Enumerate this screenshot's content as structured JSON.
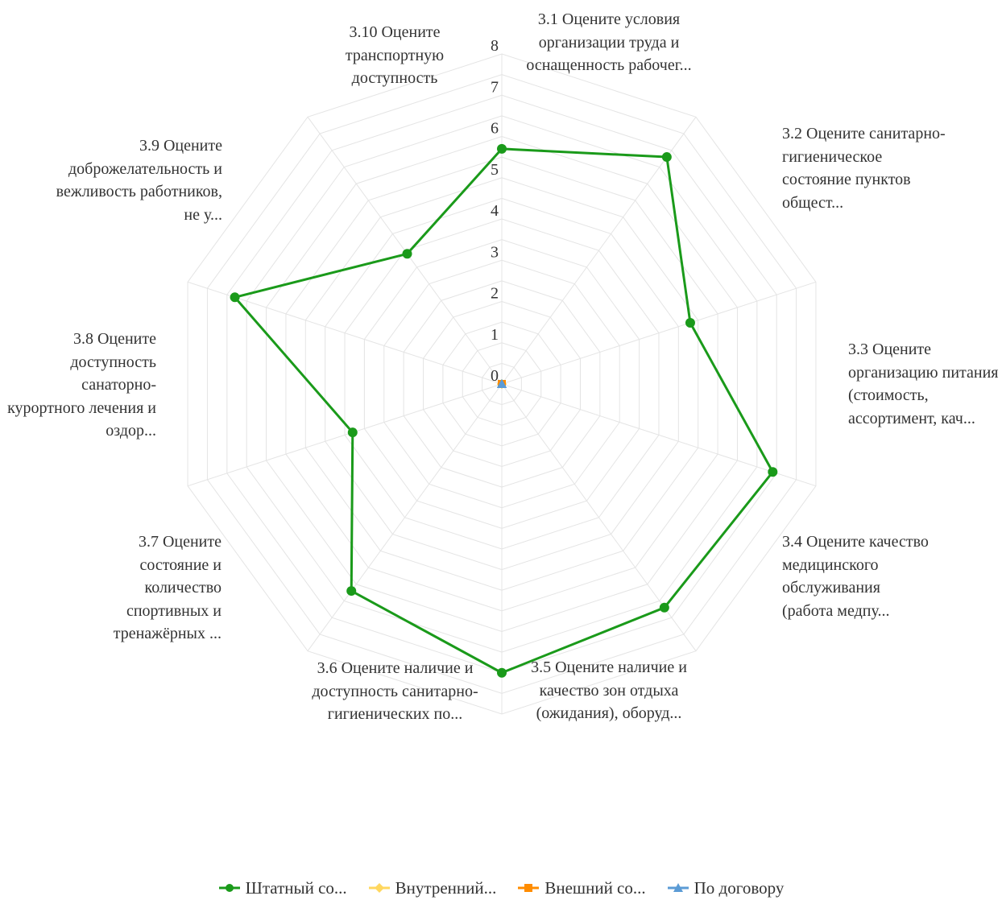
{
  "chart_data": {
    "type": "radar",
    "categories": [
      "3.1 Оцените условия организации труда и оснащенность рабочег...",
      "3.2 Оцените санитарно-гигиеническое состояние пунктов общест...",
      "3.3 Оцените организацию питания (стоимость, ассортимент, кач...",
      "3.4 Оцените качество медицинского обслуживания (работа медпу...",
      "3.5 Оцените наличие и качество зон отдыха (ожидания), оборуд...",
      "3.6 Оцените наличие и доступность санитарно-гигиенических по...",
      "3.7 Оцените состояние и количество спортивных и тренажёрных ...",
      "3.8 Оцените доступность санаторно-курортного лечения и оздор...",
      "3.9 Оцените доброжелательность и вежливость работников, не у...",
      "3.10 Оцените транспортную доступность"
    ],
    "ticks": [
      "0",
      "1",
      "2",
      "3",
      "4",
      "5",
      "6",
      "7",
      "8"
    ],
    "rlim": [
      0,
      8
    ],
    "legend_position": "bottom",
    "series": [
      {
        "name": "Штатный со...",
        "color": "#1a9a1a",
        "marker": "circle",
        "values": [
          5.7,
          6.8,
          4.8,
          6.9,
          6.7,
          7.0,
          6.2,
          3.8,
          6.8,
          3.9
        ]
      },
      {
        "name": "Внутренний...",
        "color": "#ffd75f",
        "marker": "diamond",
        "values": [
          0,
          0,
          0,
          0,
          0,
          0,
          0,
          0,
          0,
          0
        ]
      },
      {
        "name": "Внешний со...",
        "color": "#ff8c00",
        "marker": "square",
        "values": [
          0,
          0,
          0,
          0,
          0,
          0,
          0,
          0,
          0,
          0
        ]
      },
      {
        "name": "По договору",
        "color": "#5b9bd5",
        "marker": "triangle",
        "values": [
          0,
          0,
          0,
          0,
          0,
          0,
          0,
          0,
          0,
          0
        ]
      }
    ]
  },
  "axis_labels": [
    "3.1 Оцените условия организации труда и оснащенность рабочег...",
    "3.2 Оцените санитарно-гигиеническое состояние пунктов общест...",
    "3.3 Оцените организацию питания (стоимость, ассортимент, кач...",
    "3.4 Оцените качество медицинского обслуживания (работа медпу...",
    "3.5 Оцените наличие и качество зон отдыха (ожидания), оборуд...",
    "3.6 Оцените наличие и доступность санитарно-гигиенических по...",
    "3.7 Оцените состояние и количество спортивных и тренажёрных ...",
    "3.8 Оцените доступность санаторно-курортного лечения и оздор...",
    "3.9 Оцените доброжелательность и вежливость работников, не у...",
    "3.10 Оцените транспортную доступность"
  ],
  "legend": [
    {
      "label": "Штатный со...",
      "color": "#1a9a1a",
      "marker": "circle"
    },
    {
      "label": "Внутренний...",
      "color": "#ffd75f",
      "marker": "diamond"
    },
    {
      "label": "Внешний со...",
      "color": "#ff8c00",
      "marker": "square"
    },
    {
      "label": "По договору",
      "color": "#5b9bd5",
      "marker": "triangle"
    }
  ]
}
